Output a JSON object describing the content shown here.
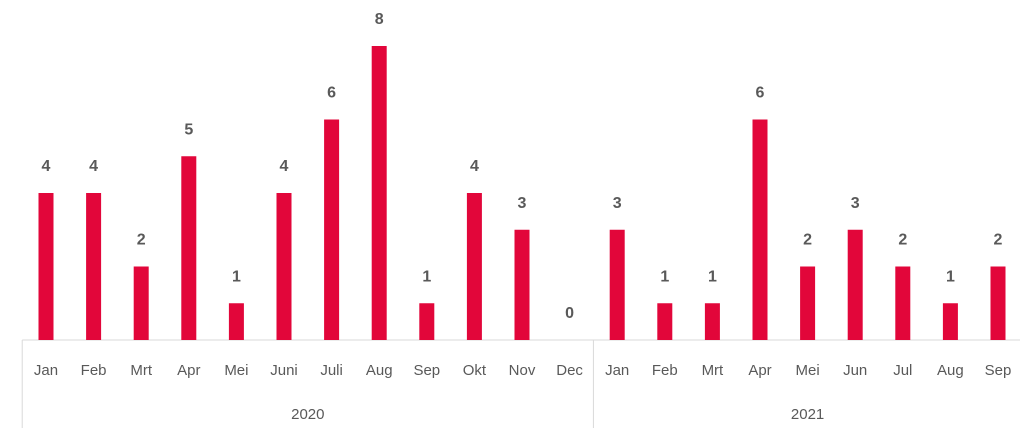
{
  "chart_data": {
    "type": "bar",
    "color": "#e2063a",
    "groups": [
      {
        "label": "2020",
        "categories": [
          "Jan",
          "Feb",
          "Mrt",
          "Apr",
          "Mei",
          "Juni",
          "Juli",
          "Aug",
          "Sep",
          "Okt",
          "Nov",
          "Dec"
        ],
        "values": [
          4,
          4,
          2,
          5,
          1,
          4,
          6,
          8,
          1,
          4,
          3,
          0
        ]
      },
      {
        "label": "2021",
        "categories": [
          "Jan",
          "Feb",
          "Mrt",
          "Apr",
          "Mei",
          "Jun",
          "Jul",
          "Aug",
          "Sep"
        ],
        "values": [
          3,
          1,
          1,
          6,
          2,
          3,
          2,
          1,
          2
        ]
      }
    ]
  }
}
